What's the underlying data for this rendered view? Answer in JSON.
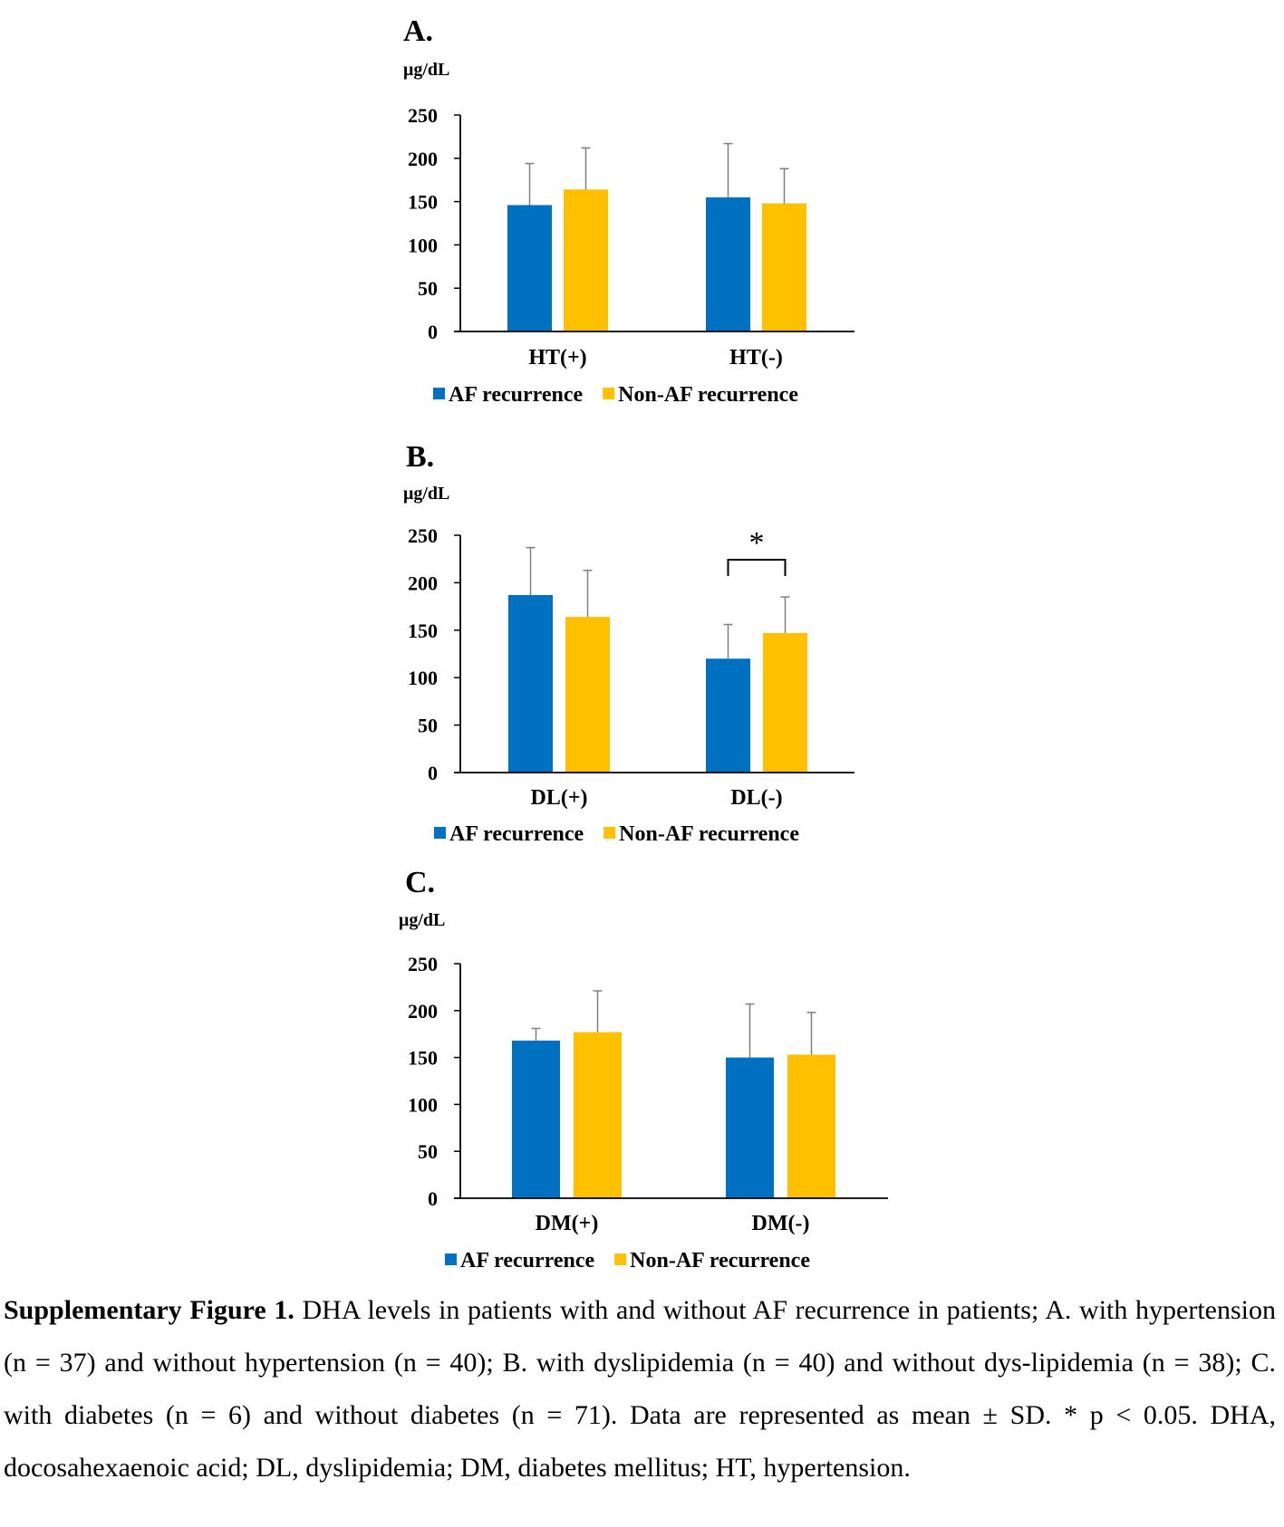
{
  "colors": {
    "af": "#0070C0",
    "non_af": "#FFC000",
    "error_bar": "#7f7f7f",
    "axis": "#000000"
  },
  "chart_data": [
    {
      "type": "bar",
      "panel": "A.",
      "ylabel": "μg/dL",
      "ylim": [
        0,
        250
      ],
      "yticks": [
        0,
        50,
        100,
        150,
        200,
        250
      ],
      "categories": [
        "HT(+)",
        "HT(-)"
      ],
      "series": [
        {
          "name": "AF recurrence",
          "values": [
            146,
            155
          ],
          "sd": [
            48,
            62
          ]
        },
        {
          "name": "Non-AF recurrence",
          "values": [
            164,
            148
          ],
          "sd": [
            48,
            40
          ]
        }
      ],
      "legend": "bottom-center",
      "annotations": []
    },
    {
      "type": "bar",
      "panel": "B.",
      "ylabel": "μg/dL",
      "ylim": [
        0,
        250
      ],
      "yticks": [
        0,
        50,
        100,
        150,
        200,
        250
      ],
      "categories": [
        "DL(+)",
        "DL(-)"
      ],
      "series": [
        {
          "name": "AF recurrence",
          "values": [
            187,
            120
          ],
          "sd": [
            50,
            36
          ]
        },
        {
          "name": "Non-AF recurrence",
          "values": [
            164,
            147
          ],
          "sd": [
            49,
            38
          ]
        }
      ],
      "legend": "bottom-center",
      "annotations": [
        {
          "category": "DL(-)",
          "text": "*"
        }
      ]
    },
    {
      "type": "bar",
      "panel": "C.",
      "ylabel": "μg/dL",
      "ylim": [
        0,
        250
      ],
      "yticks": [
        0,
        50,
        100,
        150,
        200,
        250
      ],
      "categories": [
        "DM(+)",
        "DM(-)"
      ],
      "series": [
        {
          "name": "AF recurrence",
          "values": [
            168,
            150
          ],
          "sd": [
            13,
            57
          ]
        },
        {
          "name": "Non-AF recurrence",
          "values": [
            177,
            153
          ],
          "sd": [
            44,
            45
          ]
        }
      ],
      "legend": "bottom-center",
      "annotations": []
    }
  ],
  "caption": {
    "label": "Supplementary Figure 1.",
    "text": " DHA levels in patients with and without AF recurrence in patients; A. with hypertension (n = 37) and without hypertension (n = 40); B. with dyslipidemia (n = 40) and without dys-lipidemia (n = 38); C. with diabetes (n = 6) and without diabetes (n = 71). Data are represented as mean ± SD. * p < 0.05. DHA, docosahexaenoic acid; DL, dyslipidemia; DM, diabetes mellitus; HT, hypertension."
  }
}
